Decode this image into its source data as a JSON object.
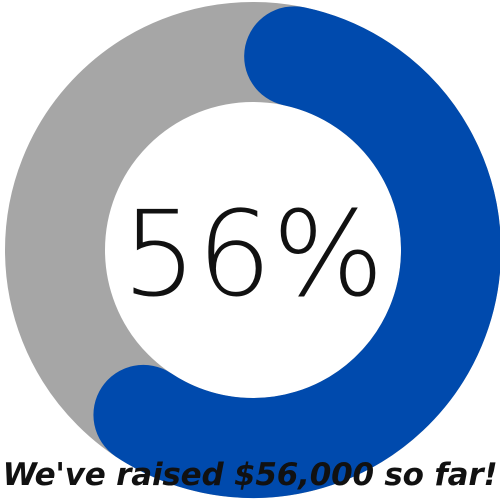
{
  "chart_data": {
    "type": "pie",
    "variant": "donut",
    "progress_percent": 56,
    "center_label": "56%",
    "caption": "We've raised $56,000 so far!",
    "colors": {
      "filled": "#004aad",
      "remaining": "#a6a6a6"
    }
  }
}
